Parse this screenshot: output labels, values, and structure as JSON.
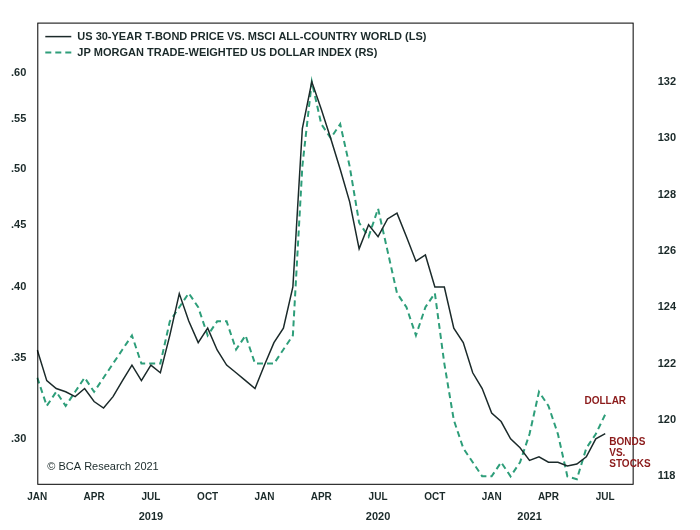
{
  "chart_data": {
    "type": "line",
    "categories": [
      "JAN",
      null,
      null,
      null,
      null,
      null,
      "APR",
      null,
      null,
      null,
      null,
      null,
      "JUL",
      null,
      null,
      null,
      null,
      null,
      "OCT",
      null,
      null,
      null,
      null,
      null,
      "JAN",
      null,
      null,
      null,
      null,
      null,
      "APR",
      null,
      null,
      null,
      null,
      null,
      "JUL",
      null,
      null,
      null,
      null,
      null,
      "OCT",
      null,
      null,
      null,
      null,
      null,
      "JAN",
      null,
      null,
      null,
      null,
      null,
      "APR",
      null,
      null,
      null,
      null,
      null,
      "JUL",
      null,
      null,
      null
    ],
    "year_labels": [
      null,
      null,
      null,
      null,
      null,
      null,
      null,
      null,
      null,
      null,
      null,
      null,
      "2019",
      null,
      null,
      null,
      null,
      null,
      null,
      null,
      null,
      null,
      null,
      null,
      null,
      null,
      null,
      null,
      null,
      null,
      null,
      null,
      null,
      null,
      null,
      null,
      "2020",
      null,
      null,
      null,
      null,
      null,
      null,
      null,
      null,
      null,
      null,
      null,
      null,
      null,
      null,
      null,
      "2021",
      null,
      null,
      null,
      null,
      null,
      null,
      null,
      null,
      null,
      null,
      null
    ],
    "series": [
      {
        "name": "US 30-YEAR T-BOND PRICE VS. MSCI ALL-COUNTRY WORLD (LS)",
        "color": "#1b2a2a",
        "line_style": "solid",
        "annotation": "BONDS VS. STOCKS",
        "values": [
          0.355,
          0.335,
          0.33,
          0.328,
          0.325,
          0.33,
          0.322,
          0.318,
          0.325,
          0.335,
          0.345,
          0.335,
          0.345,
          0.34,
          0.365,
          0.395,
          0.375,
          0.36,
          0.37,
          0.355,
          0.345,
          0.34,
          0.335,
          0.33,
          0.345,
          0.36,
          0.37,
          0.4,
          0.54,
          0.59,
          0.56,
          0.53,
          0.5,
          0.47,
          0.43,
          0.45,
          0.44,
          0.455,
          0.46,
          0.44,
          0.42,
          0.425,
          0.4,
          0.4,
          0.37,
          0.36,
          0.34,
          0.33,
          0.315,
          0.31,
          0.3,
          0.295,
          0.288,
          0.29,
          0.287,
          0.287,
          0.285,
          0.286,
          0.29,
          0.3,
          0.303,
          null,
          null,
          null
        ]
      },
      {
        "name": "JP MORGAN TRADE-WEIGHTED US DOLLAR INDEX (RS)",
        "color": "#2e9e7a",
        "line_style": "dashed",
        "axis": "y2",
        "annotation": "DOLLAR",
        "values": [
          121.5,
          120.5,
          121.0,
          120.5,
          121.0,
          121.5,
          121.0,
          121.5,
          122.0,
          122.5,
          123.0,
          122.0,
          122.0,
          122.0,
          123.5,
          124.0,
          124.5,
          124.0,
          123.0,
          123.5,
          123.5,
          122.5,
          123.0,
          122.0,
          122.0,
          122.0,
          122.5,
          123.0,
          129.0,
          132.0,
          130.5,
          130.0,
          130.5,
          129.0,
          127.0,
          126.5,
          127.5,
          126.0,
          124.5,
          124.0,
          123.0,
          124.0,
          124.5,
          122.0,
          120.0,
          119.0,
          118.5,
          118.0,
          118.0,
          118.5,
          118.0,
          118.5,
          119.5,
          121.0,
          120.5,
          119.5,
          118.0,
          117.9,
          119.0,
          119.5,
          120.2,
          null,
          null,
          null
        ]
      }
    ],
    "ylim": [
      0.275,
      0.66
    ],
    "yticks": [
      {
        "value": 0.3,
        "label": ".30"
      },
      {
        "value": 0.35,
        "label": ".35"
      },
      {
        "value": 0.4,
        "label": ".40"
      },
      {
        "value": 0.45,
        "label": ".45"
      },
      {
        "value": 0.5,
        "label": ".50"
      },
      {
        "value": 0.55,
        "label": ".55"
      },
      {
        "value": 0.6,
        "label": ".60"
      }
    ],
    "y2lim": [
      117.7,
      134.1
    ],
    "y2ticks": [
      118,
      120,
      122,
      124,
      126,
      128,
      130,
      132
    ],
    "log": "y",
    "grid": false,
    "legend": "upper left",
    "note": "© BCA Research 2021"
  }
}
